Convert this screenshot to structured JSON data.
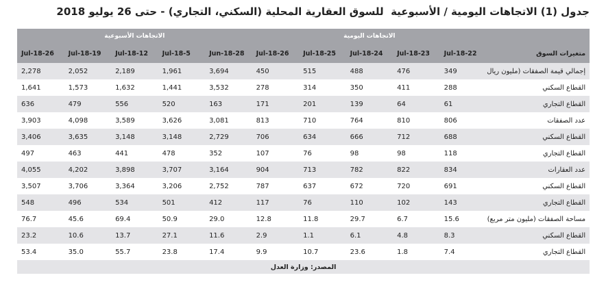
{
  "header": {
    "title": "جدول (1) الاتجاهات اليومية / الأسبوعية  للسوق العقارية المحلية (السكني، التجاري) - حتى 26 يوليو 2018"
  },
  "table": {
    "group_headers": [
      "الاتجاهات اليومية",
      "الاتجاهات الأسبوعية"
    ],
    "columns": [
      "متغيرات السوق",
      "22-Jul-18",
      "23-Jul-18",
      "24-Jul-18",
      "25-Jul-18",
      "26-Jul-18",
      "28-Jun-18",
      "5-Jul-18",
      "12-Jul-18",
      "19-Jul-18",
      "26-Jul-18"
    ],
    "rows": [
      [
        "إجمالي قيمة الصفقات (مليون ريال)",
        "349",
        "476",
        "488",
        "515",
        "450",
        "3,694",
        "1,961",
        "2,189",
        "2,052",
        "2,278"
      ],
      [
        "القطاع السكني",
        "288",
        "411",
        "350",
        "314",
        "278",
        "3,532",
        "1,441",
        "1,632",
        "1,573",
        "1,641"
      ],
      [
        "القطاع التجاري",
        "61",
        "64",
        "139",
        "201",
        "171",
        "163",
        "520",
        "556",
        "479",
        "636"
      ],
      [
        "عدد الصفقات",
        "806",
        "810",
        "764",
        "710",
        "813",
        "3,081",
        "3,626",
        "3,589",
        "4,098",
        "3,903"
      ],
      [
        "القطاع السكني",
        "688",
        "712",
        "666",
        "634",
        "706",
        "2,729",
        "3,148",
        "3,148",
        "3,635",
        "3,406"
      ],
      [
        "القطاع التجاري",
        "118",
        "98",
        "98",
        "76",
        "107",
        "352",
        "478",
        "441",
        "463",
        "497"
      ],
      [
        "عدد العقارات",
        "834",
        "822",
        "782",
        "713",
        "904",
        "3,164",
        "3,707",
        "3,898",
        "4,202",
        "4,055"
      ],
      [
        "القطاع السكني",
        "691",
        "720",
        "672",
        "637",
        "787",
        "2,752",
        "3,206",
        "3,364",
        "3,706",
        "3,507"
      ],
      [
        "القطاع التجاري",
        "143",
        "102",
        "110",
        "76",
        "117",
        "412",
        "501",
        "534",
        "496",
        "548"
      ],
      [
        "مساحة الصفقات (مليون متر مربع)",
        "15.6",
        "6.7",
        "29.7",
        "11.8",
        "12.8",
        "29.0",
        "50.9",
        "69.4",
        "45.6",
        "76.7"
      ],
      [
        "القطاع السكني",
        "8.3",
        "4.8",
        "6.1",
        "1.1",
        "2.9",
        "11.6",
        "27.1",
        "13.7",
        "10.6",
        "23.2"
      ],
      [
        "القطاع التجاري",
        "7.4",
        "1.8",
        "23.6",
        "10.7",
        "9.9",
        "17.4",
        "23.8",
        "55.7",
        "35.0",
        "53.4"
      ]
    ]
  },
  "footer": {
    "source": "المصدر: وزارة العدل"
  }
}
